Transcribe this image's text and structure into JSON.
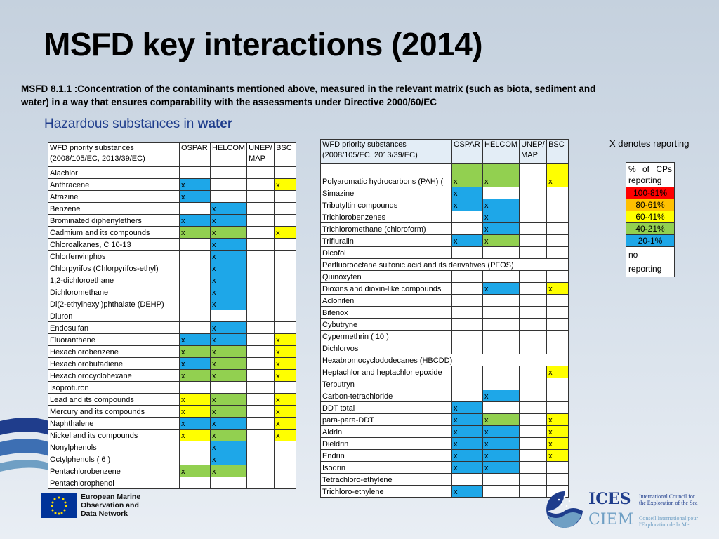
{
  "title": "MSFD key interactions (2014)",
  "subtitle": "MSFD 8.1.1 :Concentration of the contaminants mentioned above, measured in the relevant matrix (such as biota, sediment and water) in a way that ensures comparability with the assessments under Directive 2000/60/EC",
  "section": {
    "prefix": "Hazardous substances in ",
    "emphasis": "water"
  },
  "headers": {
    "name": "WFD priority substances (2008/105/EC, 2013/39/EC)",
    "ospar": "OSPAR",
    "helcom": "HELCOM",
    "unep": "UNEP/ MAP",
    "bsc": "BSC"
  },
  "colors": {
    "blue": "#1ea7e8",
    "green": "#92d050",
    "yellow": "#ffff00",
    "orange": "#ffc000",
    "red": "#ff0000"
  },
  "left_rows": [
    {
      "name": "Alachlor",
      "cells": [
        "",
        "",
        "",
        ""
      ]
    },
    {
      "name": "Anthracene",
      "cells": [
        "x:blue",
        "",
        "",
        "x:yellow"
      ]
    },
    {
      "name": "Atrazine",
      "cells": [
        "x:blue",
        "",
        "",
        ""
      ]
    },
    {
      "name": "Benzene",
      "cells": [
        "",
        "x:blue",
        "",
        ""
      ]
    },
    {
      "name": "Brominated diphenylethers",
      "cells": [
        "x:blue",
        "x:blue",
        "",
        ""
      ]
    },
    {
      "name": "Cadmium and its compounds",
      "cells": [
        "x:green",
        "x:green",
        "",
        "x:yellow"
      ]
    },
    {
      "name": "Chloroalkanes, C 10-13",
      "cells": [
        "",
        "x:blue",
        "",
        ""
      ]
    },
    {
      "name": "Chlorfenvinphos",
      "cells": [
        "",
        "x:blue",
        "",
        ""
      ]
    },
    {
      "name": "Chlorpyrifos (Chlorpyrifos-ethyl)",
      "cells": [
        "",
        "x:blue",
        "",
        ""
      ]
    },
    {
      "name": "1,2-dichloroethane",
      "cells": [
        "",
        "x:blue",
        "",
        ""
      ]
    },
    {
      "name": "Dichloromethane",
      "cells": [
        "",
        "x:blue",
        "",
        ""
      ]
    },
    {
      "name": "Di(2-ethylhexyl)phthalate (DEHP)",
      "cells": [
        "",
        "x:blue",
        "",
        ""
      ]
    },
    {
      "name": "Diuron",
      "cells": [
        "",
        "",
        "",
        ""
      ]
    },
    {
      "name": "Endosulfan",
      "cells": [
        "",
        "x:blue",
        "",
        ""
      ]
    },
    {
      "name": "Fluoranthene",
      "cells": [
        "x:blue",
        "x:blue",
        "",
        "x:yellow"
      ]
    },
    {
      "name": "Hexachlorobenzene",
      "cells": [
        "x:green",
        "x:green",
        "",
        "x:yellow"
      ]
    },
    {
      "name": "Hexachlorobutadiene",
      "cells": [
        "x:blue",
        "x:green",
        "",
        "x:yellow"
      ]
    },
    {
      "name": "Hexachlorocyclohexane",
      "cells": [
        "x:green",
        "x:green",
        "",
        "x:yellow"
      ]
    },
    {
      "name": "Isoproturon",
      "cells": [
        "",
        "",
        "",
        ""
      ]
    },
    {
      "name": "Lead and its compounds",
      "cells": [
        "x:yellow",
        "x:green",
        "",
        "x:yellow"
      ]
    },
    {
      "name": "Mercury and its compounds",
      "cells": [
        "x:yellow",
        "x:green",
        "",
        "x:yellow"
      ]
    },
    {
      "name": "Naphthalene",
      "cells": [
        "x:blue",
        "x:blue",
        "",
        "x:yellow"
      ]
    },
    {
      "name": "Nickel and its compounds",
      "cells": [
        "x:yellow",
        "x:green",
        "",
        "x:yellow"
      ]
    },
    {
      "name": "Nonylphenols",
      "cells": [
        "",
        "x:blue",
        "",
        ""
      ]
    },
    {
      "name": "Octylphenols ( 6 )",
      "cells": [
        "",
        "x:blue",
        "",
        ""
      ]
    },
    {
      "name": "Pentachlorobenzene",
      "cells": [
        "x:green",
        "x:green",
        "",
        ""
      ]
    },
    {
      "name": "Pentachlorophenol",
      "cells": [
        "",
        "",
        "",
        ""
      ]
    }
  ],
  "right_rows": [
    {
      "name": "Polyaromatic hydrocarbons (PAH) (",
      "cells": [
        "x:green",
        "x:green",
        "",
        "x:yellow"
      ],
      "tall": true
    },
    {
      "name": "Simazine",
      "cells": [
        "x:blue",
        "",
        "",
        ""
      ]
    },
    {
      "name": "Tributyltin compounds",
      "cells": [
        "x:blue",
        "x:blue",
        "",
        ""
      ]
    },
    {
      "name": "Trichlorobenzenes",
      "cells": [
        "",
        "x:blue",
        "",
        ""
      ]
    },
    {
      "name": "Trichloromethane (chloroform)",
      "cells": [
        "",
        "x:blue",
        "",
        ""
      ]
    },
    {
      "name": "Trifluralin",
      "cells": [
        "x:blue",
        "x:green",
        "",
        ""
      ]
    },
    {
      "name": "Dicofol",
      "cells": [
        "",
        "",
        "",
        ""
      ]
    },
    {
      "name": "Perfluorooctane sulfonic acid and its derivatives (PFOS)",
      "cells": [
        "",
        "",
        "",
        ""
      ],
      "span": true
    },
    {
      "name": "Quinoxyfen",
      "cells": [
        "",
        "",
        "",
        ""
      ]
    },
    {
      "name": "Dioxins and dioxin-like compounds",
      "cells": [
        "",
        "x:blue",
        "",
        "x:yellow"
      ]
    },
    {
      "name": "Aclonifen",
      "cells": [
        "",
        "",
        "",
        ""
      ]
    },
    {
      "name": "Bifenox",
      "cells": [
        "",
        "",
        "",
        ""
      ]
    },
    {
      "name": "Cybutryne",
      "cells": [
        "",
        "",
        "",
        ""
      ]
    },
    {
      "name": "Cypermethrin ( 10 )",
      "cells": [
        "",
        "",
        "",
        ""
      ]
    },
    {
      "name": "Dichlorvos",
      "cells": [
        "",
        "",
        "",
        ""
      ]
    },
    {
      "name": "Hexabromocyclododecanes (HBCDD)",
      "cells": [
        "",
        "",
        "",
        ""
      ],
      "span": true
    },
    {
      "name": "Heptachlor and heptachlor epoxide",
      "cells": [
        "",
        "",
        "",
        "x:yellow"
      ]
    },
    {
      "name": "Terbutryn",
      "cells": [
        "",
        "",
        "",
        ""
      ]
    },
    {
      "name": "Carbon-tetrachloride",
      "cells": [
        "",
        "x:blue",
        "",
        ""
      ]
    },
    {
      "name": " DDT total",
      "cells": [
        "x:blue",
        "",
        "",
        ""
      ]
    },
    {
      "name": " para-para-DDT",
      "cells": [
        "x:blue",
        "x:green",
        "",
        "x:yellow"
      ]
    },
    {
      "name": " Aldrin",
      "cells": [
        "x:blue",
        "x:blue",
        "",
        "x:yellow"
      ]
    },
    {
      "name": " Dieldrin",
      "cells": [
        "x:blue",
        "x:blue",
        "",
        "x:yellow"
      ]
    },
    {
      "name": " Endrin",
      "cells": [
        "x:blue",
        "x:blue",
        "",
        "x:yellow"
      ]
    },
    {
      "name": " Isodrin",
      "cells": [
        "x:blue",
        "x:blue",
        "",
        ""
      ]
    },
    {
      "name": " Tetrachloro-ethylene",
      "cells": [
        "",
        "",
        "",
        ""
      ]
    },
    {
      "name": " Trichloro-ethylene",
      "cells": [
        "x:blue",
        "",
        "",
        ""
      ]
    }
  ],
  "legend": {
    "note": "X denotes reporting",
    "header": "% of CPs reporting",
    "items": [
      {
        "label": "100-81%",
        "color": "#ff0000"
      },
      {
        "label": "80-61%",
        "color": "#ffc000"
      },
      {
        "label": "60-41%",
        "color": "#ffff00"
      },
      {
        "label": "40-21%",
        "color": "#92d050"
      },
      {
        "label": "20-1%",
        "color": "#1ea7e8"
      }
    ],
    "none": "no reporting"
  },
  "footer": {
    "emodnet": [
      "European Marine",
      "Observation and",
      "Data Network"
    ],
    "ices": {
      "en": "ICES",
      "fr": "CIEM",
      "en_full": [
        "International Council for",
        "the Exploration of the Sea"
      ],
      "fr_full": [
        "Conseil International pour",
        "l'Exploration de la Mer"
      ]
    }
  }
}
